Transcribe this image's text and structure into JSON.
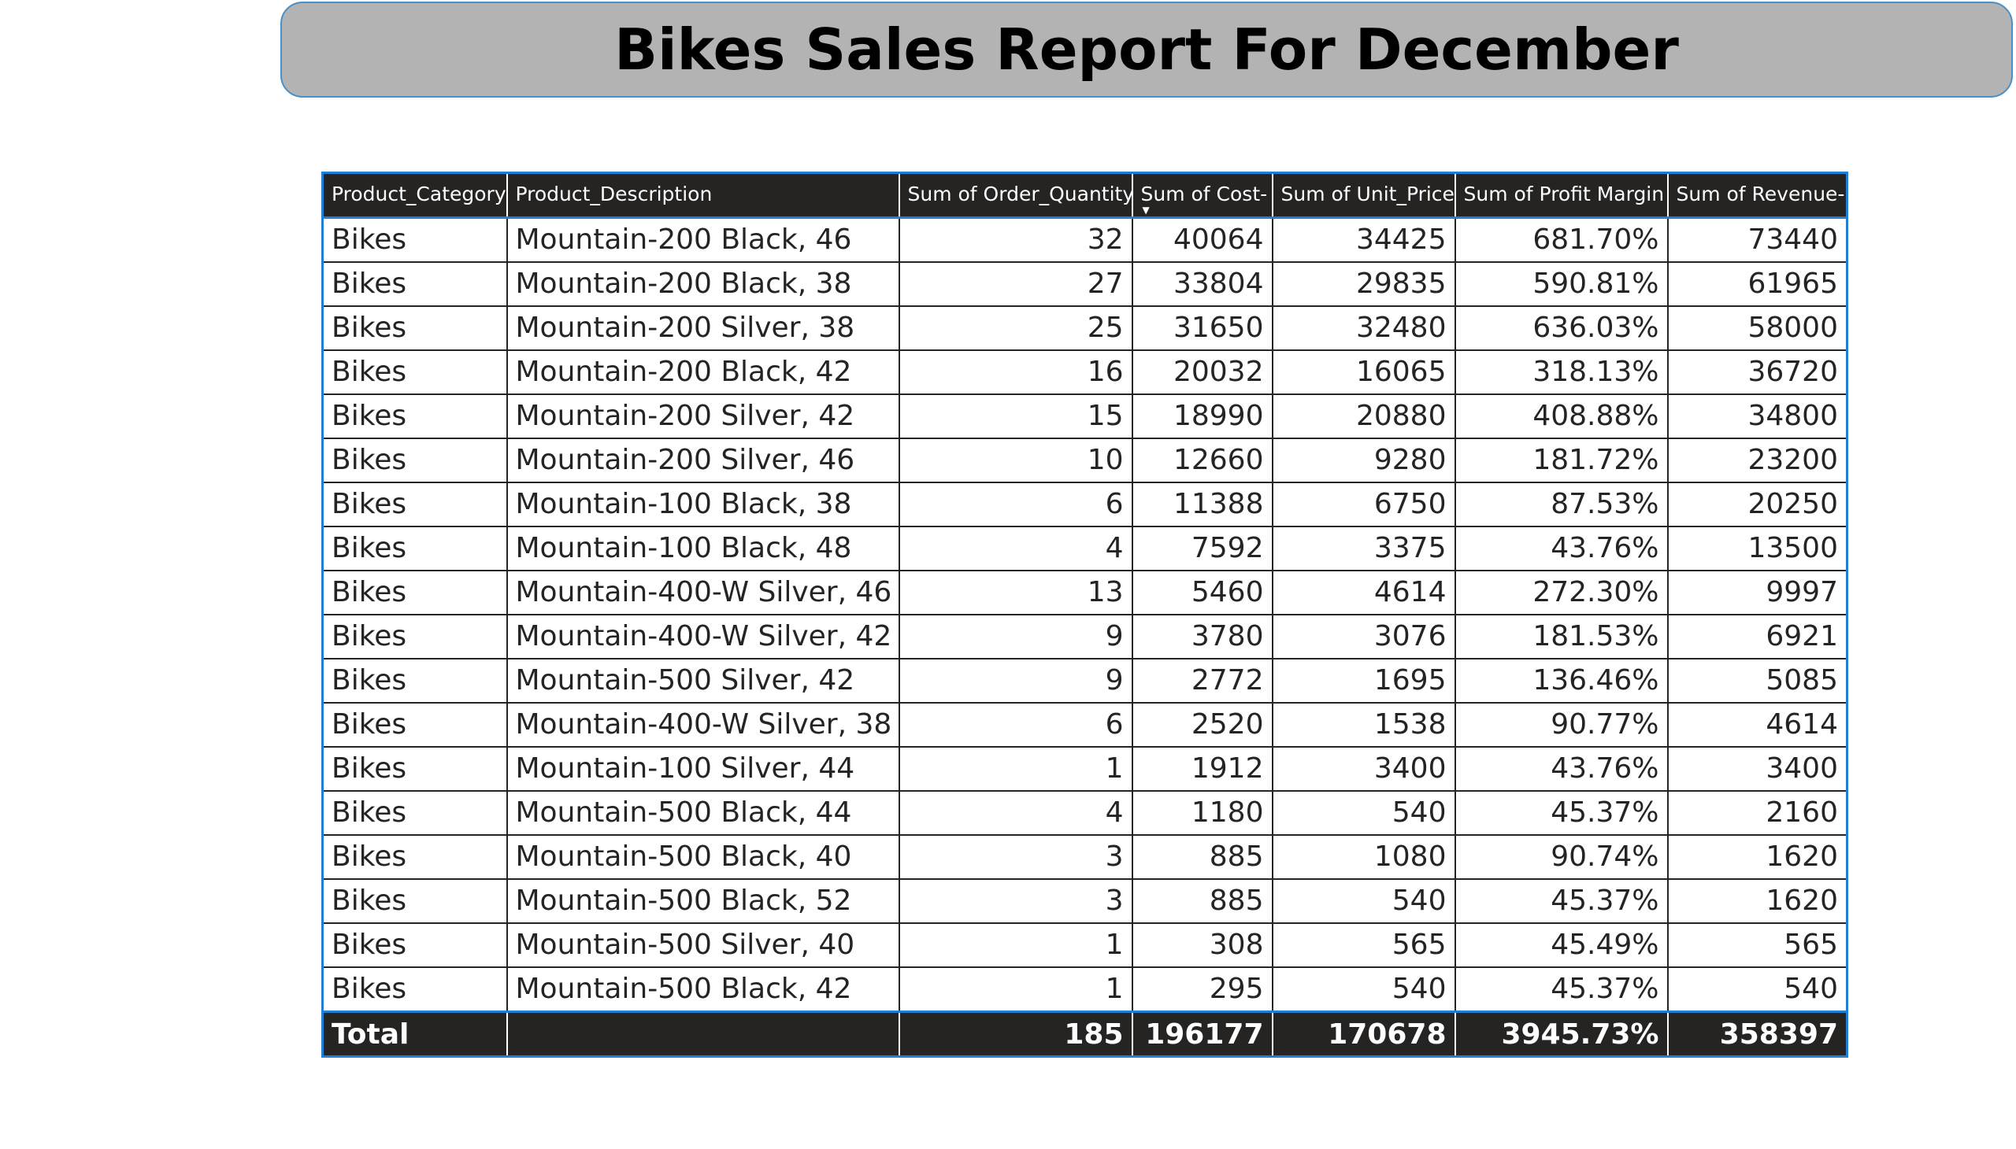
{
  "report": {
    "title": "Bikes Sales Report For December"
  },
  "colors": {
    "banner_bg": "#b3b3b3",
    "banner_border": "#4a90c8",
    "header_bg": "#252423",
    "header_text": "#ffffff",
    "table_accent": "#1f7fd4"
  },
  "table": {
    "columns": [
      "Product_Category",
      "Product_Description",
      "Sum of Order_Quantity",
      "Sum of Cost-",
      "Sum of Unit_Price",
      "Sum of Profit Margin",
      "Sum of Revenue-"
    ],
    "sorted_column": "Sum of Cost-",
    "sort_direction": "descending",
    "sort_icon": "sort-descending-icon",
    "rows": [
      [
        "Bikes",
        "Mountain-200 Black, 46",
        "32",
        "40064",
        "34425",
        "681.70%",
        "73440"
      ],
      [
        "Bikes",
        "Mountain-200 Black, 38",
        "27",
        "33804",
        "29835",
        "590.81%",
        "61965"
      ],
      [
        "Bikes",
        "Mountain-200 Silver, 38",
        "25",
        "31650",
        "32480",
        "636.03%",
        "58000"
      ],
      [
        "Bikes",
        "Mountain-200 Black, 42",
        "16",
        "20032",
        "16065",
        "318.13%",
        "36720"
      ],
      [
        "Bikes",
        "Mountain-200 Silver, 42",
        "15",
        "18990",
        "20880",
        "408.88%",
        "34800"
      ],
      [
        "Bikes",
        "Mountain-200 Silver, 46",
        "10",
        "12660",
        "9280",
        "181.72%",
        "23200"
      ],
      [
        "Bikes",
        "Mountain-100 Black, 38",
        "6",
        "11388",
        "6750",
        "87.53%",
        "20250"
      ],
      [
        "Bikes",
        "Mountain-100 Black, 48",
        "4",
        "7592",
        "3375",
        "43.76%",
        "13500"
      ],
      [
        "Bikes",
        "Mountain-400-W Silver, 46",
        "13",
        "5460",
        "4614",
        "272.30%",
        "9997"
      ],
      [
        "Bikes",
        "Mountain-400-W Silver, 42",
        "9",
        "3780",
        "3076",
        "181.53%",
        "6921"
      ],
      [
        "Bikes",
        "Mountain-500 Silver, 42",
        "9",
        "2772",
        "1695",
        "136.46%",
        "5085"
      ],
      [
        "Bikes",
        "Mountain-400-W Silver, 38",
        "6",
        "2520",
        "1538",
        "90.77%",
        "4614"
      ],
      [
        "Bikes",
        "Mountain-100 Silver, 44",
        "1",
        "1912",
        "3400",
        "43.76%",
        "3400"
      ],
      [
        "Bikes",
        "Mountain-500 Black, 44",
        "4",
        "1180",
        "540",
        "45.37%",
        "2160"
      ],
      [
        "Bikes",
        "Mountain-500 Black, 40",
        "3",
        "885",
        "1080",
        "90.74%",
        "1620"
      ],
      [
        "Bikes",
        "Mountain-500 Black, 52",
        "3",
        "885",
        "540",
        "45.37%",
        "1620"
      ],
      [
        "Bikes",
        "Mountain-500 Silver, 40",
        "1",
        "308",
        "565",
        "45.49%",
        "565"
      ],
      [
        "Bikes",
        "Mountain-500 Black, 42",
        "1",
        "295",
        "540",
        "45.37%",
        "540"
      ]
    ],
    "total": [
      "Total",
      "",
      "185",
      "196177",
      "170678",
      "3945.73%",
      "358397"
    ]
  }
}
